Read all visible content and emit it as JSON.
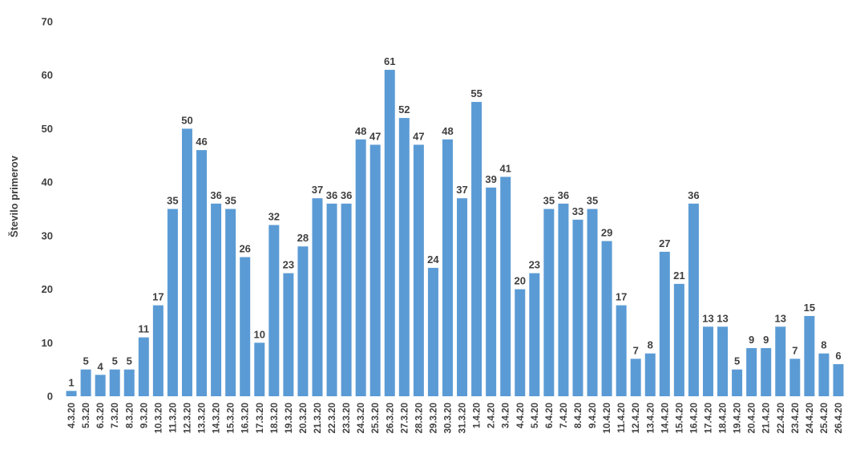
{
  "chart_data": {
    "type": "bar",
    "title": "",
    "xlabel": "",
    "ylabel": "Število primerov",
    "ylim": [
      0,
      70
    ],
    "yticks": [
      0,
      10,
      20,
      30,
      40,
      50,
      60,
      70
    ],
    "grid": false,
    "legend": "none",
    "bar_color": "#5b9bd5",
    "categories": [
      "4.3.20",
      "5.3.20",
      "6.3.20",
      "7.3.20",
      "8.3.20",
      "9.3.20",
      "10.3.20",
      "11.3.20",
      "12.3.20",
      "13.3.20",
      "14.3.20",
      "15.3.20",
      "16.3.20",
      "17.3.20",
      "18.3.20",
      "19.3.20",
      "20.3.20",
      "21.3.20",
      "22.3.20",
      "23.3.20",
      "24.3.20",
      "25.3.20",
      "26.3.20",
      "27.3.20",
      "28.3.20",
      "29.3.20",
      "30.3.20",
      "31.3.20",
      "1.4.20",
      "2.4.20",
      "3.4.20",
      "4.4.20",
      "5.4.20",
      "6.4.20",
      "7.4.20",
      "8.4.20",
      "9.4.20",
      "10.4.20",
      "11.4.20",
      "12.4.20",
      "13.4.20",
      "14.4.20",
      "15.4.20",
      "16.4.20",
      "17.4.20",
      "18.4.20",
      "19.4.20",
      "20.4.20",
      "21.4.20",
      "22.4.20",
      "23.4.20",
      "24.4.20",
      "25.4.20",
      "26.4.20"
    ],
    "values": [
      1,
      5,
      4,
      5,
      5,
      11,
      17,
      35,
      50,
      46,
      36,
      35,
      26,
      10,
      32,
      23,
      28,
      37,
      36,
      36,
      48,
      47,
      61,
      52,
      47,
      24,
      48,
      37,
      55,
      39,
      41,
      20,
      23,
      35,
      36,
      33,
      35,
      29,
      17,
      7,
      8,
      27,
      21,
      36,
      13,
      13,
      5,
      9,
      9,
      13,
      7,
      15,
      8,
      6
    ]
  }
}
